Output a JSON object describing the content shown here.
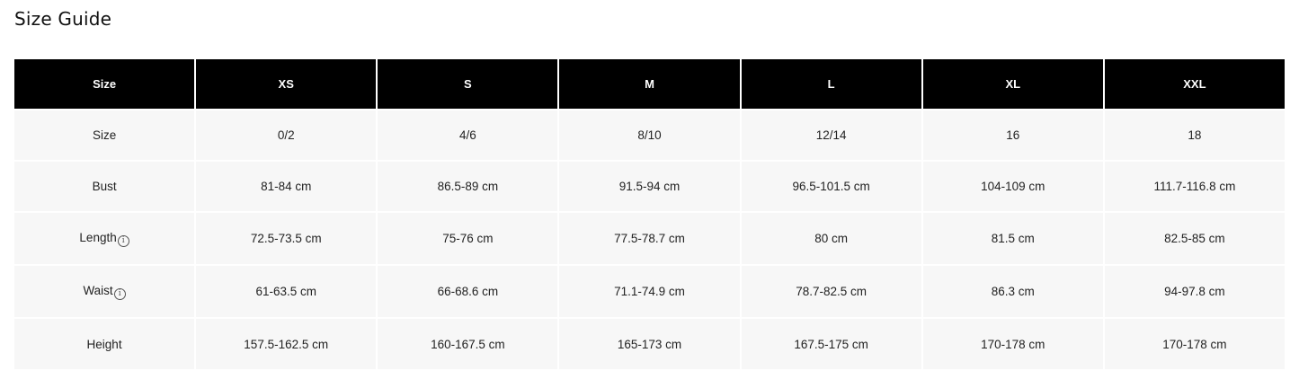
{
  "title": "Size Guide",
  "table": {
    "headers": [
      "Size",
      "XS",
      "S",
      "M",
      "L",
      "XL",
      "XXL"
    ],
    "rows": [
      {
        "label": "Size",
        "info": false,
        "values": [
          "0/2",
          "4/6",
          "8/10",
          "12/14",
          "16",
          "18"
        ]
      },
      {
        "label": "Bust",
        "info": false,
        "values": [
          "81-84 cm",
          "86.5-89 cm",
          "91.5-94 cm",
          "96.5-101.5 cm",
          "104-109 cm",
          "111.7-116.8 cm"
        ]
      },
      {
        "label": "Length",
        "info": true,
        "values": [
          "72.5-73.5 cm",
          "75-76 cm",
          "77.5-78.7 cm",
          "80 cm",
          "81.5 cm",
          "82.5-85 cm"
        ]
      },
      {
        "label": "Waist",
        "info": true,
        "values": [
          "61-63.5 cm",
          "66-68.6 cm",
          "71.1-74.9 cm",
          "78.7-82.5 cm",
          "86.3 cm",
          "94-97.8 cm"
        ]
      },
      {
        "label": "Height",
        "info": false,
        "values": [
          "157.5-162.5 cm",
          "160-167.5 cm",
          "165-173 cm",
          "167.5-175 cm",
          "170-178 cm",
          "170-178 cm"
        ]
      }
    ]
  },
  "icons": {
    "info": "info-circle-icon",
    "info_glyph": "i"
  },
  "colors": {
    "header_bg": "#000000",
    "header_text": "#ffffff",
    "cell_bg": "#f7f7f7"
  }
}
